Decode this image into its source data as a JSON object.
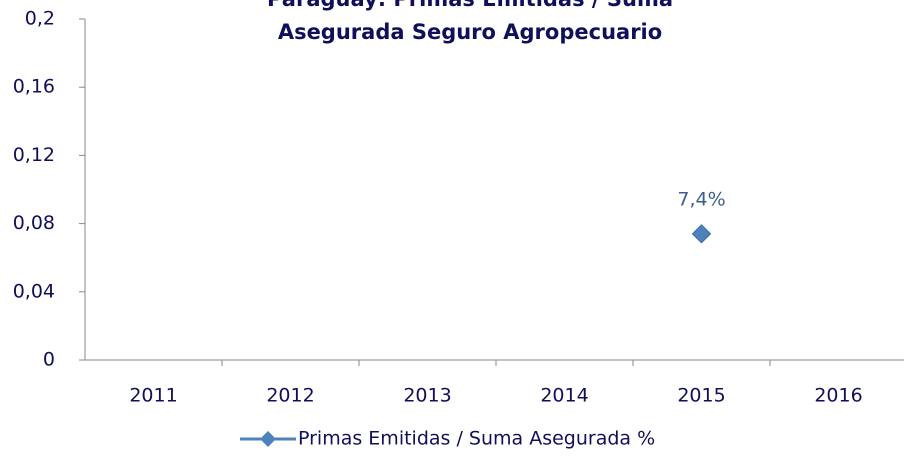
{
  "chart_data": {
    "type": "line",
    "title": "Paraguay: Primas Emitidas / Suma Asegurada Seguro Agropecuario",
    "categories": [
      "2011",
      "2012",
      "2013",
      "2014",
      "2015",
      "2016"
    ],
    "series": [
      {
        "name": "Primas Emitidas / Suma Asegurada %",
        "color": "#4f81bd",
        "values": [
          null,
          null,
          null,
          null,
          0.074,
          null
        ],
        "value_labels": [
          null,
          null,
          null,
          null,
          "7,4%",
          null
        ]
      }
    ],
    "ylim": [
      0,
      0.2
    ],
    "yticks": [
      0,
      {
        "value": 0.04,
        "label": "0,04"
      },
      {
        "value": 0.08,
        "label": "0,08"
      },
      {
        "value": 0.12,
        "label": "0,12"
      },
      {
        "value": 0.16,
        "label": "0,16"
      },
      {
        "value": 0.2,
        "label": "0,2"
      }
    ],
    "grid": false,
    "legend": "bottom"
  }
}
